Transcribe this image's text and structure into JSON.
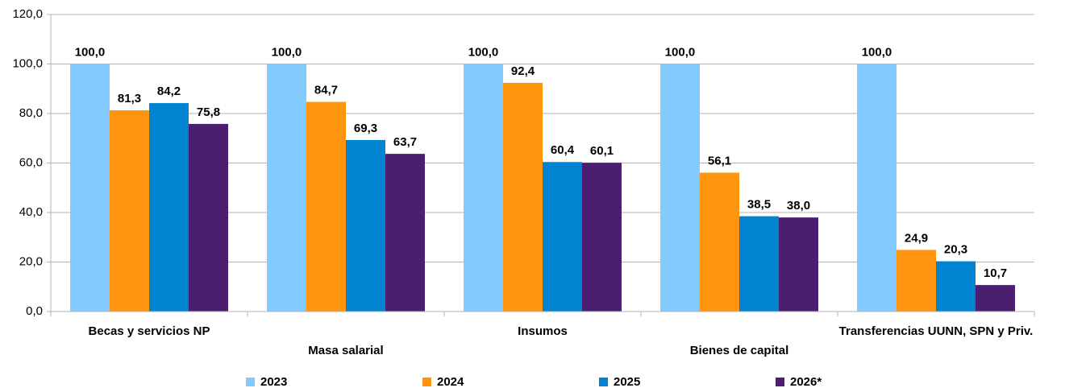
{
  "chart_data": {
    "type": "bar",
    "categories": [
      "Becas y servicios NP",
      "Masa salarial",
      "Insumos",
      "Bienes de capital",
      "Transferencias UUNN, SPN y Priv."
    ],
    "series": [
      {
        "name": "2023",
        "color": "#83caff",
        "values": [
          100.0,
          100.0,
          100.0,
          100.0,
          100.0
        ],
        "value_labels": [
          "100,0",
          "100,0",
          "100,0",
          "100,0",
          "100,0"
        ]
      },
      {
        "name": "2024",
        "color": "#ff950e",
        "values": [
          81.3,
          84.7,
          92.4,
          56.1,
          24.9
        ],
        "value_labels": [
          "81,3",
          "84,7",
          "92,4",
          "56,1",
          "24,9"
        ]
      },
      {
        "name": "2025",
        "color": "#0084d1",
        "values": [
          84.2,
          69.3,
          60.4,
          38.5,
          20.3
        ],
        "value_labels": [
          "84,2",
          "69,3",
          "60,4",
          "38,5",
          "20,3"
        ]
      },
      {
        "name": "2026*",
        "color": "#4b1f6f",
        "values": [
          75.8,
          63.7,
          60.1,
          38.0,
          10.7
        ],
        "value_labels": [
          "75,8",
          "63,7",
          "60,1",
          "38,0",
          "10,7"
        ]
      }
    ],
    "ylim": [
      0,
      120
    ],
    "yticks": [
      {
        "value": 0,
        "label": "0,0"
      },
      {
        "value": 20,
        "label": "20,0"
      },
      {
        "value": 40,
        "label": "40,0"
      },
      {
        "value": 60,
        "label": "60,0"
      },
      {
        "value": 80,
        "label": "80,0"
      },
      {
        "value": 100,
        "label": "100,0"
      },
      {
        "value": 120,
        "label": "120,0"
      }
    ],
    "grid": true,
    "legend": "bottom"
  }
}
